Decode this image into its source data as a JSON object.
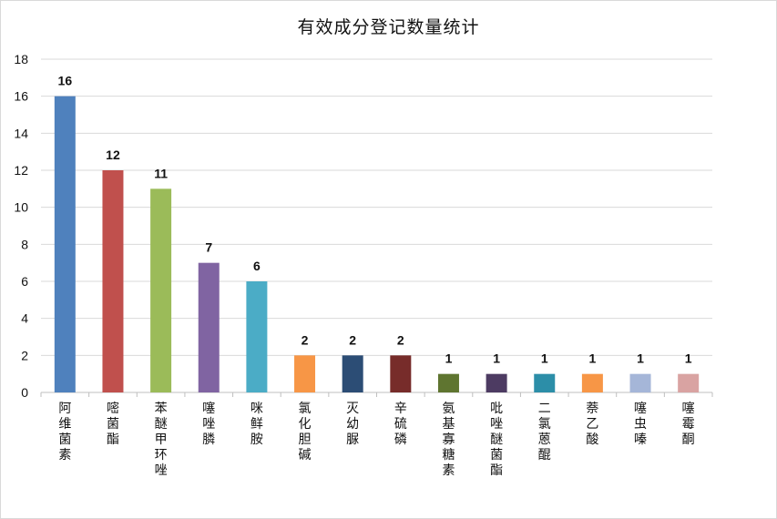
{
  "chart_data": {
    "type": "bar",
    "title": "有效成分登记数量统计",
    "xlabel": "",
    "ylabel": "",
    "ylim": [
      0,
      18
    ],
    "yticks": [
      0,
      2,
      4,
      6,
      8,
      10,
      12,
      14,
      16,
      18
    ],
    "grid": true,
    "legend": "none",
    "categories": [
      "阿维菌素",
      "嘧菌酯",
      "苯醚甲环唑",
      "噻唑膦",
      "咪鲜胺",
      "氯化胆碱",
      "灭幼脲",
      "辛硫磷",
      "氨基寡糖素",
      "吡唑醚菌酯",
      "二氯蒽醌",
      "萘乙酸",
      "噻虫嗪",
      "噻霉酮"
    ],
    "values": [
      16,
      12,
      11,
      7,
      6,
      2,
      2,
      2,
      1,
      1,
      1,
      1,
      1,
      1
    ],
    "colors": [
      "#4f81bd",
      "#c0504d",
      "#9bbb59",
      "#8064a2",
      "#4bacc6",
      "#f79646",
      "#2c4d75",
      "#772c2a",
      "#5f7530",
      "#4d3b62",
      "#2c8ea8",
      "#f79646",
      "#a5b6d8",
      "#d9a3a2"
    ]
  }
}
